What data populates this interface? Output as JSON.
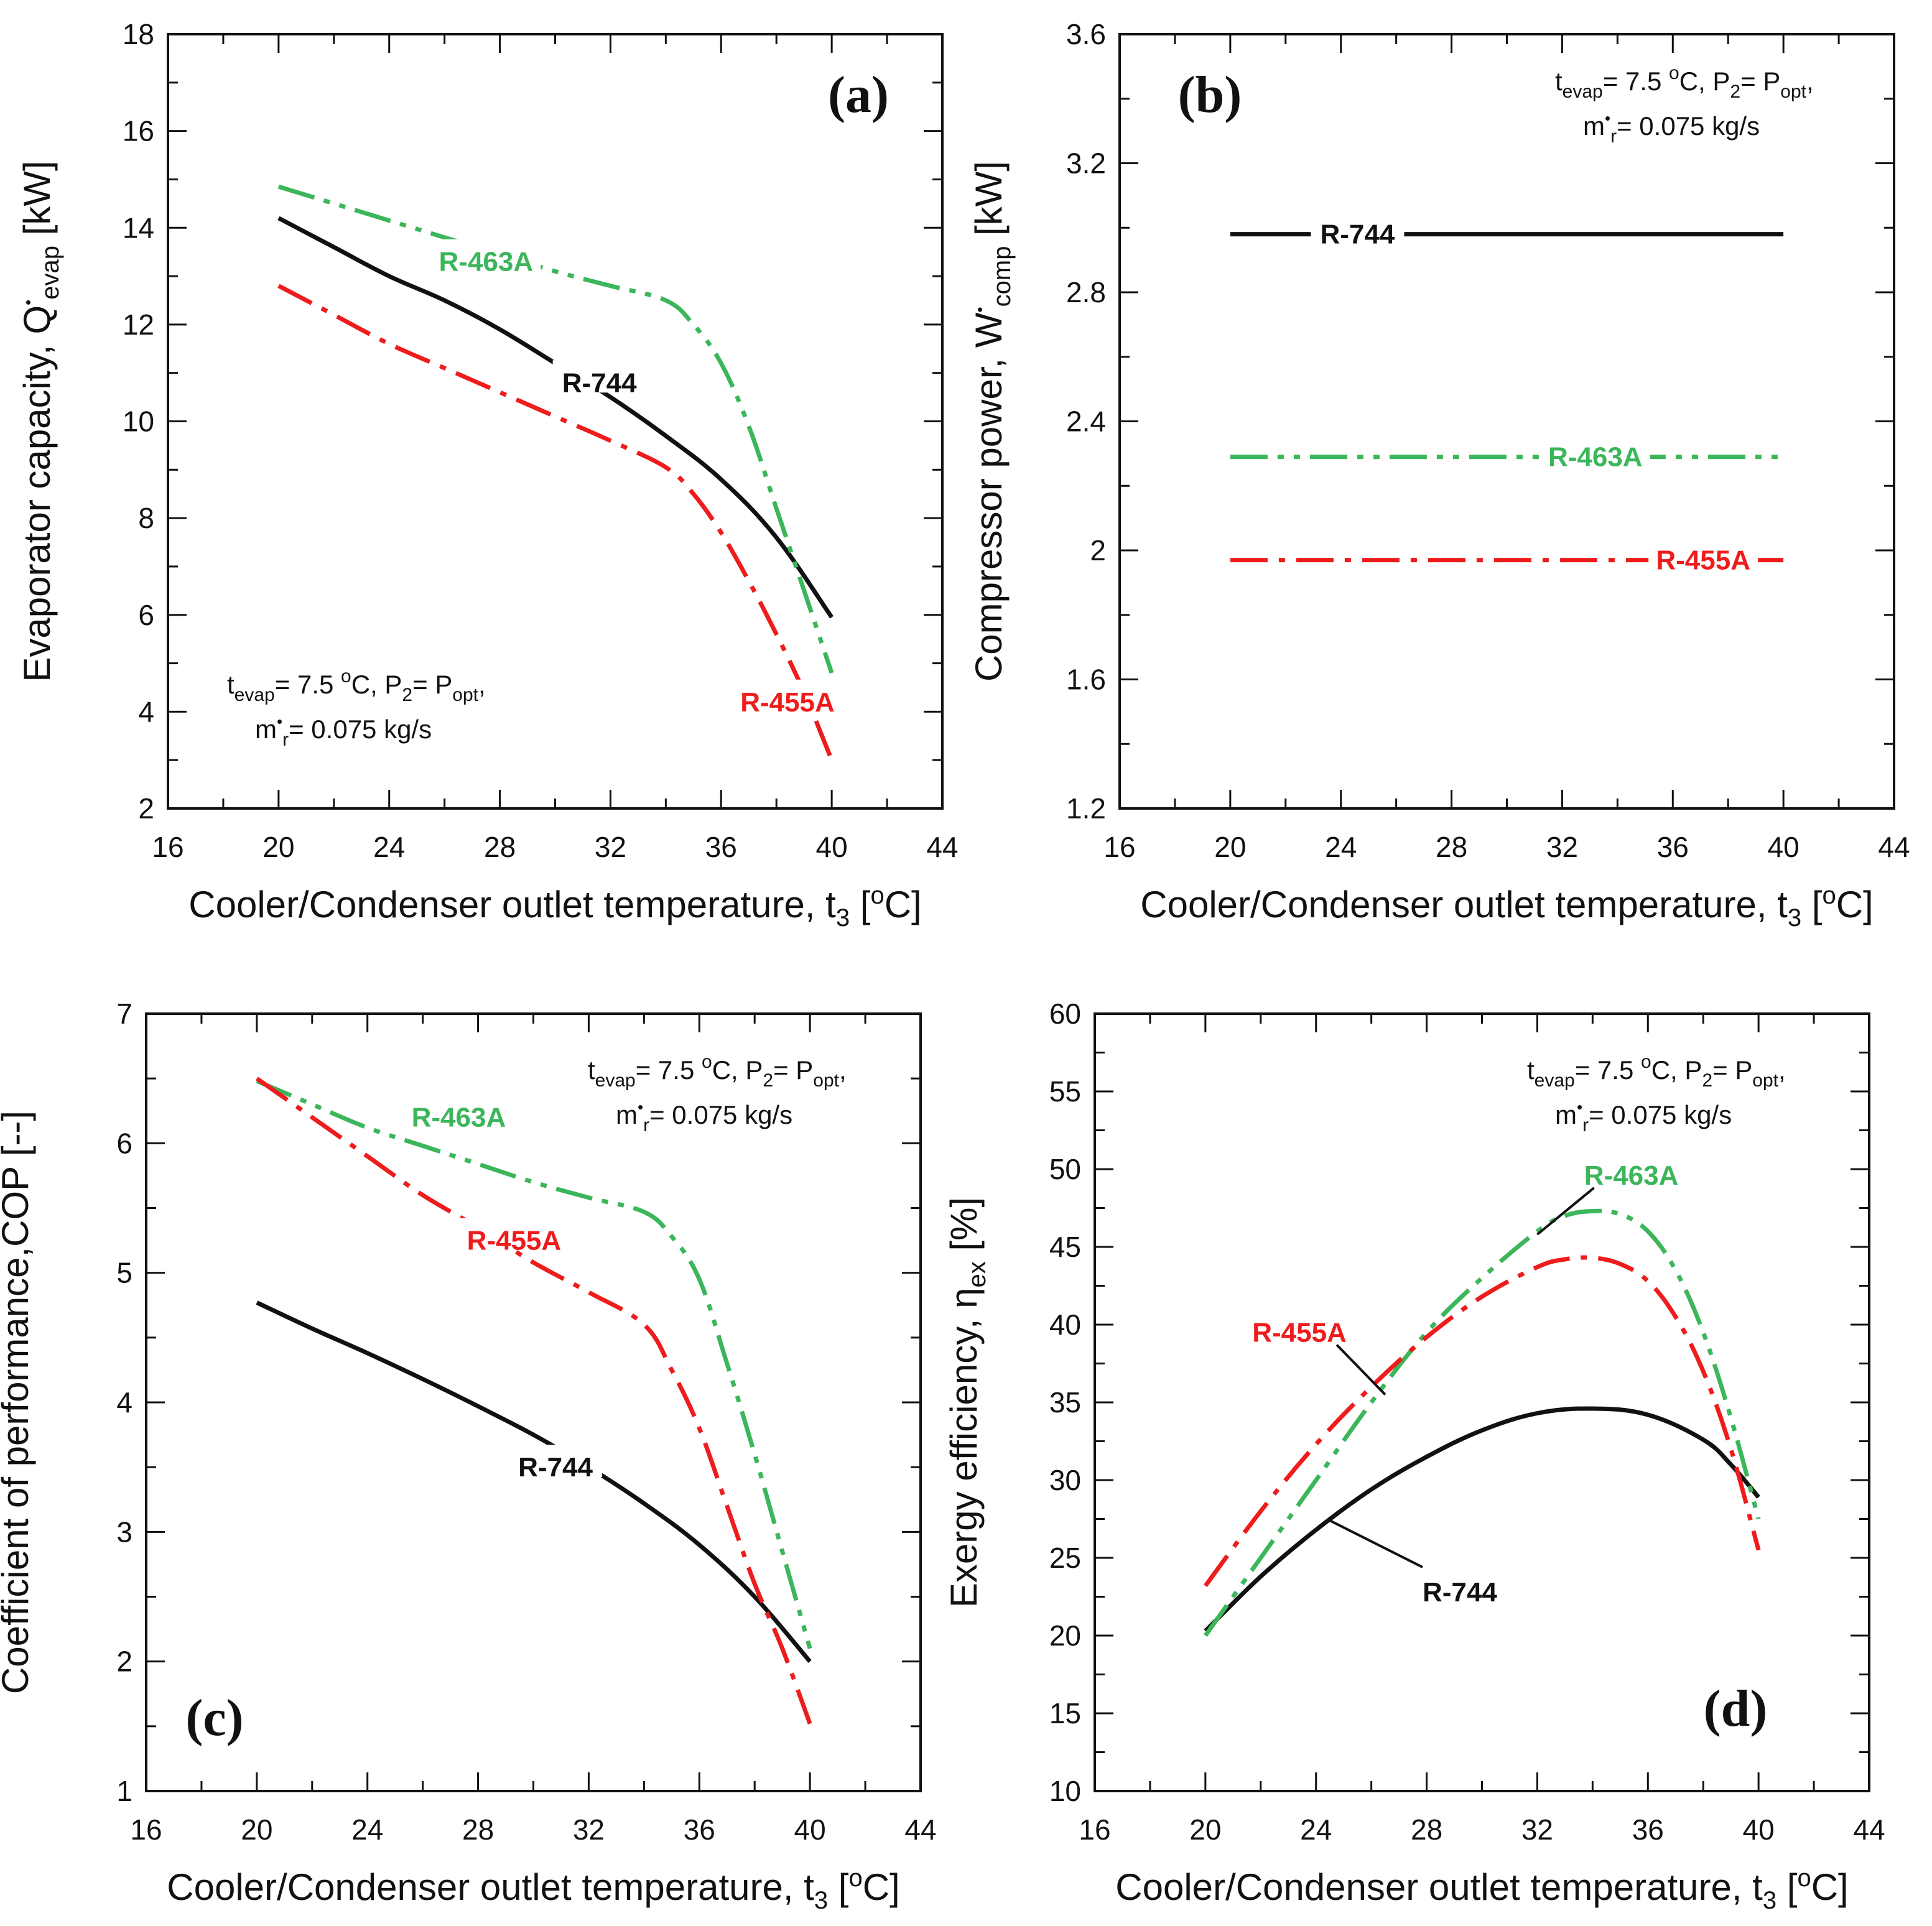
{
  "colors": {
    "R-744": "#111111",
    "R-463A": "#3cb65a",
    "R-455A": "#ee1c1c"
  },
  "condition_note": {
    "line1_prefix": "t",
    "line1_sub1": "evap",
    "line1_mid": "= 7.5 ",
    "line1_sup": "o",
    "line1_mid2": "C, P",
    "line1_sub2": "2",
    "line1_mid3": "= P",
    "line1_sub3": "opt",
    "line1_end": ",",
    "line2_prefix": "m",
    "line2_sup": "•",
    "line2_sub": "r",
    "line2_end": "= 0.075 kg/s"
  },
  "chart_data": [
    {
      "id": "a",
      "type": "line",
      "panel_label": "(a)",
      "xlabel": {
        "main": "Cooler/Condenser outlet temperature, t",
        "sub": "3",
        "mid": " [",
        "sup": "o",
        "end": "C]"
      },
      "ylabel": {
        "main": "Evaporator capacity, Q",
        "dot": "•",
        "sub": "evap",
        "end": " [kW]"
      },
      "xlim": [
        16,
        44
      ],
      "ylim": [
        2,
        18
      ],
      "xticks": [
        "16",
        "20",
        "24",
        "28",
        "32",
        "36",
        "40",
        "44"
      ],
      "yticks": [
        "2",
        "4",
        "6",
        "8",
        "10",
        "12",
        "14",
        "16",
        "18"
      ],
      "legend_position": "bottom-left",
      "series": [
        {
          "name": "R-744",
          "dash": "solid",
          "x": [
            20,
            22,
            24,
            26,
            28,
            30,
            32,
            34,
            36,
            38,
            40
          ],
          "y": [
            14.2,
            13.6,
            13.0,
            12.5,
            11.9,
            11.2,
            10.5,
            9.7,
            8.8,
            7.6,
            5.95
          ]
        },
        {
          "name": "R-463A",
          "dash": "dashdotdot",
          "x": [
            20,
            22,
            24,
            26,
            28,
            30,
            32,
            34,
            35,
            36,
            37,
            38,
            39,
            40
          ],
          "y": [
            14.85,
            14.5,
            14.15,
            13.8,
            13.45,
            13.1,
            12.8,
            12.5,
            12.0,
            11.2,
            9.9,
            8.2,
            6.5,
            4.8
          ]
        },
        {
          "name": "R-455A",
          "dash": "dashdot",
          "x": [
            20,
            22,
            24,
            26,
            28,
            30,
            32,
            34,
            35,
            36,
            37,
            38,
            39,
            40
          ],
          "y": [
            12.8,
            12.2,
            11.6,
            11.1,
            10.6,
            10.1,
            9.6,
            9.05,
            8.5,
            7.7,
            6.7,
            5.6,
            4.4,
            3.0
          ]
        }
      ],
      "labels": [
        {
          "text": "R-463A",
          "series": "R-463A",
          "x": 27.5,
          "y": 13.3
        },
        {
          "text": "R-744",
          "series": "R-744",
          "x": 31.6,
          "y": 10.8
        },
        {
          "text": "R-455A",
          "series": "R-455A",
          "x": 38.4,
          "y": 4.2
        }
      ]
    },
    {
      "id": "b",
      "type": "line",
      "panel_label": "(b)",
      "xlabel": {
        "main": "Cooler/Condenser outlet temperature, t",
        "sub": "3",
        "mid": " [",
        "sup": "o",
        "end": "C]"
      },
      "ylabel": {
        "main": "Compressor power, W",
        "dot": "•",
        "sub": "comp",
        "end": " [kW]"
      },
      "xlim": [
        16,
        44
      ],
      "ylim": [
        1.2,
        3.6
      ],
      "xticks": [
        "16",
        "20",
        "24",
        "28",
        "32",
        "36",
        "40",
        "44"
      ],
      "yticks": [
        "1.2",
        "1.6",
        "2",
        "2.4",
        "2.8",
        "3.2",
        "3.6"
      ],
      "legend_position": "top-right",
      "series": [
        {
          "name": "R-744",
          "dash": "solid",
          "x": [
            20,
            40
          ],
          "y": [
            2.98,
            2.98
          ]
        },
        {
          "name": "R-463A",
          "dash": "dashdotdot",
          "x": [
            20,
            40
          ],
          "y": [
            2.29,
            2.29
          ]
        },
        {
          "name": "R-455A",
          "dash": "dashdot",
          "x": [
            20,
            40
          ],
          "y": [
            1.97,
            1.97
          ]
        }
      ],
      "labels": [
        {
          "text": "R-744",
          "series": "R-744",
          "x": 24.6,
          "y": 2.98
        },
        {
          "text": "R-463A",
          "series": "R-463A",
          "x": 33.2,
          "y": 2.29
        },
        {
          "text": "R-455A",
          "series": "R-455A",
          "x": 37.1,
          "y": 1.97
        }
      ]
    },
    {
      "id": "c",
      "type": "line",
      "panel_label": "(c)",
      "xlabel": {
        "main": "Cooler/Condenser outlet temperature, t",
        "sub": "3",
        "mid": " [",
        "sup": "o",
        "end": "C]"
      },
      "ylabel": {
        "main": "Coefficient of performance,COP [--]",
        "dot": "",
        "sub": "",
        "end": ""
      },
      "xlim": [
        16,
        44
      ],
      "ylim": [
        1,
        7
      ],
      "xticks": [
        "16",
        "20",
        "24",
        "28",
        "32",
        "36",
        "40",
        "44"
      ],
      "yticks": [
        "1",
        "2",
        "3",
        "4",
        "5",
        "6",
        "7"
      ],
      "legend_position": "top-right",
      "series": [
        {
          "name": "R-744",
          "dash": "solid",
          "x": [
            20,
            22,
            24,
            26,
            28,
            30,
            32,
            34,
            36,
            38,
            40
          ],
          "y": [
            4.77,
            4.57,
            4.38,
            4.18,
            3.97,
            3.75,
            3.5,
            3.22,
            2.9,
            2.5,
            2.0
          ]
        },
        {
          "name": "R-463A",
          "dash": "dashdotdot",
          "x": [
            20,
            22,
            24,
            26,
            28,
            30,
            32,
            34,
            35,
            36,
            37,
            38,
            39,
            40
          ],
          "y": [
            6.48,
            6.3,
            6.12,
            5.98,
            5.84,
            5.7,
            5.58,
            5.47,
            5.28,
            4.95,
            4.3,
            3.6,
            2.85,
            2.1
          ]
        },
        {
          "name": "R-455A",
          "dash": "dashdot",
          "x": [
            20,
            22,
            24,
            26,
            28,
            30,
            32,
            34,
            35,
            36,
            37,
            38,
            39,
            40
          ],
          "y": [
            6.5,
            6.2,
            5.9,
            5.6,
            5.35,
            5.08,
            4.85,
            4.6,
            4.25,
            3.8,
            3.2,
            2.6,
            2.1,
            1.52
          ]
        }
      ],
      "labels": [
        {
          "text": "R-463A",
          "series": "R-463A",
          "x": 27.3,
          "y": 6.2
        },
        {
          "text": "R-455A",
          "series": "R-455A",
          "x": 29.3,
          "y": 5.25
        },
        {
          "text": "R-744",
          "series": "R-744",
          "x": 30.8,
          "y": 3.5
        }
      ]
    },
    {
      "id": "d",
      "type": "line",
      "panel_label": "(d)",
      "xlabel": {
        "main": "Cooler/Condenser outlet temperature, t",
        "sub": "3",
        "mid": " [",
        "sup": "o",
        "end": "C]"
      },
      "ylabel": {
        "main": "Exergy efficiency, η",
        "dot": "",
        "sub": "ex",
        "end": " [%]"
      },
      "xlim": [
        16,
        44
      ],
      "ylim": [
        10,
        60
      ],
      "xticks": [
        "16",
        "20",
        "24",
        "28",
        "32",
        "36",
        "40",
        "44"
      ],
      "yticks": [
        "10",
        "15",
        "20",
        "25",
        "30",
        "35",
        "40",
        "45",
        "50",
        "55",
        "60"
      ],
      "legend_position": "top-right",
      "series": [
        {
          "name": "R-744",
          "dash": "solid",
          "x": [
            20,
            22,
            24,
            26,
            28,
            30,
            32,
            34,
            36,
            38,
            39,
            40
          ],
          "y": [
            20.3,
            23.8,
            26.8,
            29.4,
            31.5,
            33.2,
            34.3,
            34.6,
            34.2,
            32.6,
            31.0,
            28.9
          ]
        },
        {
          "name": "R-463A",
          "dash": "dashdotdot",
          "x": [
            20,
            22,
            24,
            26,
            28,
            30,
            32,
            33,
            34,
            35,
            36,
            37,
            38,
            39,
            40
          ],
          "y": [
            20.0,
            25.0,
            30.0,
            35.0,
            39.5,
            43.0,
            46.0,
            47.0,
            47.3,
            47.1,
            46.0,
            43.5,
            39.5,
            34.0,
            27.5
          ]
        },
        {
          "name": "R-455A",
          "dash": "dashdot",
          "x": [
            20,
            22,
            24,
            26,
            28,
            30,
            32,
            33,
            34,
            35,
            36,
            37,
            38,
            39,
            40
          ],
          "y": [
            23.2,
            28.0,
            32.3,
            36.0,
            39.2,
            41.8,
            43.7,
            44.2,
            44.3,
            43.9,
            42.8,
            40.5,
            37.0,
            32.0,
            25.5
          ]
        }
      ],
      "labels": [
        {
          "text": "R-463A",
          "series": "R-463A",
          "x": 35.4,
          "y": 49.6,
          "leader_to": [
            32.0,
            45.8
          ]
        },
        {
          "text": "R-455A",
          "series": "R-455A",
          "x": 23.4,
          "y": 39.5,
          "leader_to": [
            26.5,
            35.5
          ]
        },
        {
          "text": "R-744",
          "series": "R-744",
          "x": 29.2,
          "y": 22.8,
          "leader_to": [
            24.5,
            27.4
          ]
        }
      ]
    }
  ]
}
